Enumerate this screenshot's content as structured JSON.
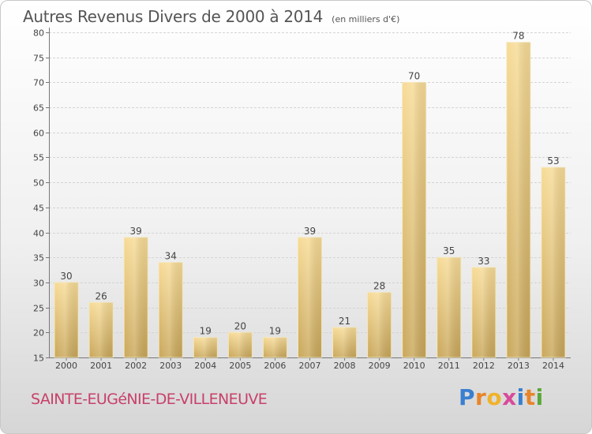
{
  "chart_data": {
    "type": "bar",
    "title": "Autres Revenus Divers de 2000 à 2014",
    "subtitle": "(en milliers d'€)",
    "categories": [
      "2000",
      "2001",
      "2002",
      "2003",
      "2004",
      "2005",
      "2006",
      "2007",
      "2008",
      "2009",
      "2010",
      "2011",
      "2012",
      "2013",
      "2014"
    ],
    "values": [
      30,
      26,
      39,
      34,
      19,
      20,
      19,
      39,
      21,
      28,
      70,
      35,
      33,
      78,
      53
    ],
    "ylim": [
      15,
      80
    ],
    "yticks": [
      15,
      20,
      25,
      30,
      35,
      40,
      45,
      50,
      55,
      60,
      65,
      70,
      75,
      80
    ],
    "grid": true,
    "bar_color": "#e8c46e"
  },
  "footer": {
    "commune": "SAINTE-EUGéNIE-DE-VILLENEUVE",
    "logo_letters": [
      "P",
      "r",
      "o",
      "x",
      "i",
      "t",
      "i"
    ],
    "logo_colors": [
      "#3a7fd0",
      "#e8852a",
      "#f0b22a",
      "#d84a9a",
      "#3a7fd0",
      "#e8852a",
      "#5aa83a"
    ]
  }
}
